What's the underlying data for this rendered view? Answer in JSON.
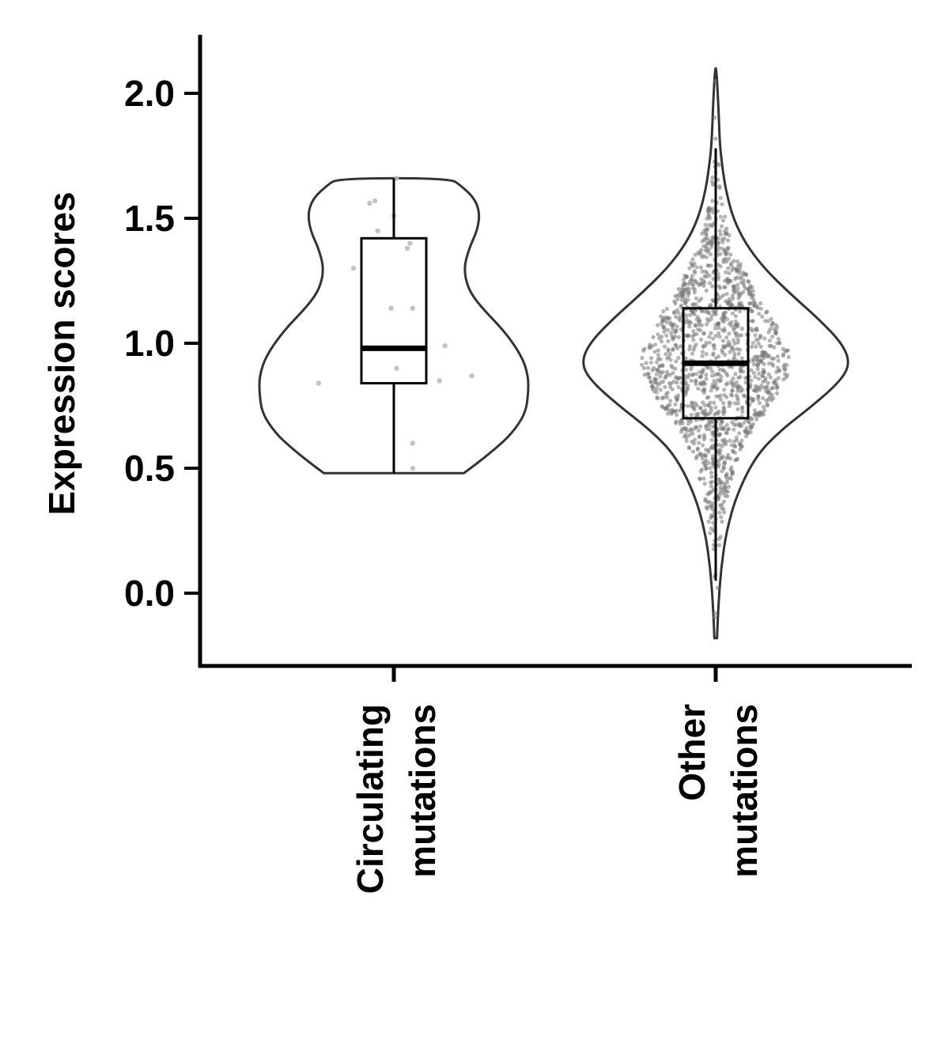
{
  "chart_data": {
    "type": "violin",
    "title": "",
    "xlabel": "",
    "ylabel": "Expression scores",
    "ylim": [
      -0.3,
      2.22
    ],
    "yticks": [
      0.0,
      0.5,
      1.0,
      1.5,
      2.0
    ],
    "ytick_labels": [
      "0.0",
      "0.5",
      "1.0",
      "1.5",
      "2.0"
    ],
    "categories": [
      {
        "line1": "Circulating",
        "line2": "mutations"
      },
      {
        "line1": "Other",
        "line2": "mutations"
      }
    ],
    "groups": [
      {
        "violin": {
          "min": 0.48,
          "max": 1.66,
          "profile": [
            [
              0.48,
              0.52
            ],
            [
              0.52,
              0.62
            ],
            [
              0.58,
              0.76
            ],
            [
              0.64,
              0.88
            ],
            [
              0.72,
              0.98
            ],
            [
              0.8,
              1.0
            ],
            [
              0.87,
              1.0
            ],
            [
              0.95,
              0.95
            ],
            [
              1.05,
              0.82
            ],
            [
              1.15,
              0.64
            ],
            [
              1.22,
              0.55
            ],
            [
              1.3,
              0.52
            ],
            [
              1.38,
              0.56
            ],
            [
              1.45,
              0.62
            ],
            [
              1.52,
              0.64
            ],
            [
              1.58,
              0.6
            ],
            [
              1.63,
              0.5
            ],
            [
              1.66,
              0.42
            ]
          ]
        },
        "box": {
          "whisker_low": 0.48,
          "q1": 0.84,
          "median": 0.98,
          "q3": 1.42,
          "whisker_high": 1.66
        },
        "points": [
          [
            -0.56,
            0.84
          ],
          [
            0.02,
            0.9
          ],
          [
            0.38,
            0.99
          ],
          [
            0.34,
            0.85
          ],
          [
            0.58,
            0.87
          ],
          [
            -0.02,
            1.14
          ],
          [
            0.14,
            1.14
          ],
          [
            0.1,
            1.38
          ],
          [
            0.14,
            0.6
          ],
          [
            0.14,
            0.5
          ],
          [
            -0.18,
            1.56
          ],
          [
            -0.14,
            1.57
          ],
          [
            0.0,
            1.51
          ],
          [
            -0.12,
            1.45
          ],
          [
            0.12,
            1.4
          ],
          [
            0.02,
            1.66
          ],
          [
            -0.3,
            1.3
          ]
        ]
      },
      {
        "violin": {
          "min": -0.18,
          "max": 2.1,
          "profile": [
            [
              -0.18,
              0.01
            ],
            [
              -0.05,
              0.02
            ],
            [
              0.1,
              0.04
            ],
            [
              0.25,
              0.08
            ],
            [
              0.4,
              0.16
            ],
            [
              0.55,
              0.3
            ],
            [
              0.65,
              0.48
            ],
            [
              0.75,
              0.72
            ],
            [
              0.85,
              0.93
            ],
            [
              0.92,
              1.0
            ],
            [
              1.0,
              0.94
            ],
            [
              1.1,
              0.76
            ],
            [
              1.2,
              0.55
            ],
            [
              1.3,
              0.36
            ],
            [
              1.4,
              0.22
            ],
            [
              1.5,
              0.13
            ],
            [
              1.6,
              0.08
            ],
            [
              1.7,
              0.05
            ],
            [
              1.8,
              0.03
            ],
            [
              1.95,
              0.02
            ],
            [
              2.1,
              0.005
            ]
          ]
        },
        "box": {
          "whisker_low": 0.05,
          "q1": 0.7,
          "median": 0.92,
          "q3": 1.14,
          "whisker_high": 1.78
        },
        "n_points": 1400,
        "point_mean": 0.92,
        "point_sd": 0.3
      }
    ],
    "colors": {
      "violin_outline": "#333333",
      "box": "#000000",
      "points_group1": "#bbbbbb",
      "points_group2": "#777777",
      "axis": "#000000"
    }
  }
}
